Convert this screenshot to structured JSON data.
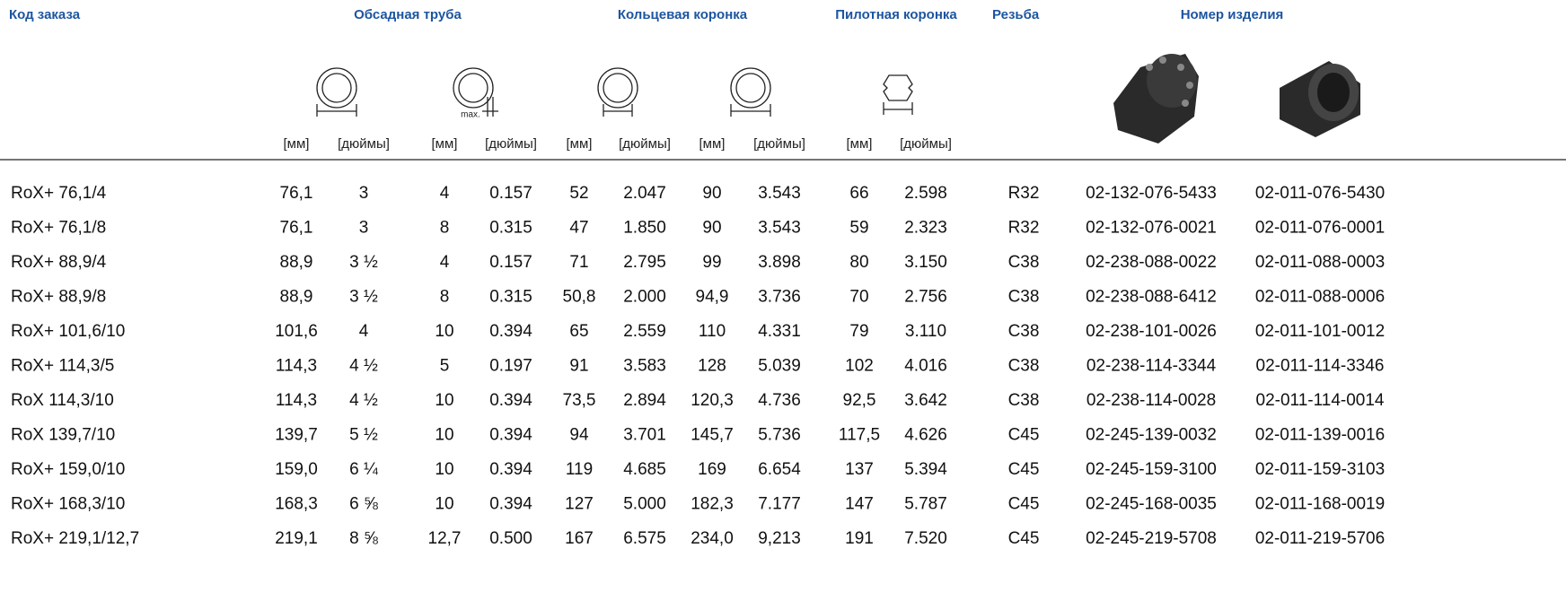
{
  "header": {
    "columns": [
      "Код заказа",
      "Обсадная труба",
      "Кольцевая коронка",
      "Пилотная коронка",
      "Резьба",
      "Номер изделия"
    ]
  },
  "icons": {
    "max_label": "max."
  },
  "units": [
    "[мм]",
    "[дюймы]",
    "[мм]",
    "[дюймы]",
    "[мм]",
    "[дюймы]",
    "[мм]",
    "[дюймы]",
    "[мм]",
    "[дюймы]"
  ],
  "table": {
    "rows": [
      [
        "RoX+ 76,1/4",
        "76,1",
        "3",
        "4",
        "0.157",
        "52",
        "2.047",
        "90",
        "3.543",
        "66",
        "2.598",
        "R32",
        "02-132-076-5433",
        "02-011-076-5430"
      ],
      [
        "RoX+ 76,1/8",
        "76,1",
        "3",
        "8",
        "0.315",
        "47",
        "1.850",
        "90",
        "3.543",
        "59",
        "2.323",
        "R32",
        "02-132-076-0021",
        "02-011-076-0001"
      ],
      [
        "RoX+ 88,9/4",
        "88,9",
        "3 ½",
        "4",
        "0.157",
        "71",
        "2.795",
        "99",
        "3.898",
        "80",
        "3.150",
        "C38",
        "02-238-088-0022",
        "02-011-088-0003"
      ],
      [
        "RoX+ 88,9/8",
        "88,9",
        "3 ½",
        "8",
        "0.315",
        "50,8",
        "2.000",
        "94,9",
        "3.736",
        "70",
        "2.756",
        "C38",
        "02-238-088-6412",
        "02-011-088-0006"
      ],
      [
        "RoX+ 101,6/10",
        "101,6",
        "4",
        "10",
        "0.394",
        "65",
        "2.559",
        "110",
        "4.331",
        "79",
        "3.110",
        "C38",
        "02-238-101-0026",
        "02-011-101-0012"
      ],
      [
        "RoX+ 114,3/5",
        "114,3",
        "4 ½",
        "5",
        "0.197",
        "91",
        "3.583",
        "128",
        "5.039",
        "102",
        "4.016",
        "C38",
        "02-238-114-3344",
        "02-011-114-3346"
      ],
      [
        "RoX 114,3/10",
        "114,3",
        "4 ½",
        "10",
        "0.394",
        "73,5",
        "2.894",
        "120,3",
        "4.736",
        "92,5",
        "3.642",
        "C38",
        "02-238-114-0028",
        "02-011-114-0014"
      ],
      [
        "RoX 139,7/10",
        "139,7",
        "5 ½",
        "10",
        "0.394",
        "94",
        "3.701",
        "145,7",
        "5.736",
        "117,5",
        "4.626",
        "C45",
        "02-245-139-0032",
        "02-011-139-0016"
      ],
      [
        "RoX+ 159,0/10",
        "159,0",
        "6 ¼",
        "10",
        "0.394",
        "119",
        "4.685",
        "169",
        "6.654",
        "137",
        "5.394",
        "C45",
        "02-245-159-3100",
        "02-011-159-3103"
      ],
      [
        "RoX+ 168,3/10",
        "168,3",
        "6 ⅝",
        "10",
        "0.394",
        "127",
        "5.000",
        "182,3",
        "7.177",
        "147",
        "5.787",
        "C45",
        "02-245-168-0035",
        "02-011-168-0019"
      ],
      [
        "RoX+ 219,1/12,7",
        "219,1",
        "8 ⅝",
        "12,7",
        "0.500",
        "167",
        "6.575",
        "234,0",
        "9,213",
        "191",
        "7.520",
        "C45",
        "02-245-219-5708",
        "02-011-219-5706"
      ]
    ]
  }
}
